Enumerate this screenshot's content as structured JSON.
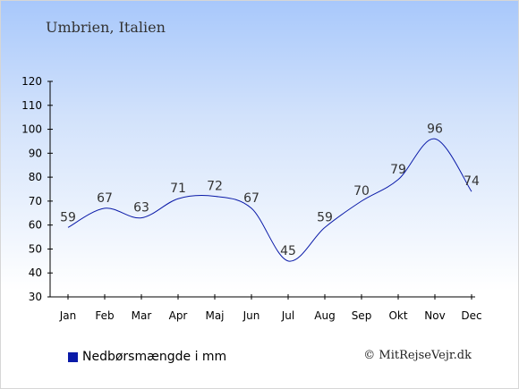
{
  "header": {
    "subtitle": "Umbrien, Italien"
  },
  "legend": {
    "label": "Nedbørsmængde i mm",
    "color": "#0a1aa8"
  },
  "credit": "© MitRejseVejr.dk",
  "chart_data": {
    "type": "line",
    "categories": [
      "Jan",
      "Feb",
      "Mar",
      "Apr",
      "Maj",
      "Jun",
      "Jul",
      "Aug",
      "Sep",
      "Okt",
      "Nov",
      "Dec"
    ],
    "series": [
      {
        "name": "Nedbørsmængde i mm",
        "values": [
          59,
          67,
          63,
          71,
          72,
          67,
          45,
          59,
          70,
          79,
          96,
          74
        ],
        "color": "#0a1aa8"
      }
    ],
    "yticks": [
      30,
      40,
      50,
      60,
      70,
      80,
      90,
      100,
      110,
      120
    ],
    "ylim": [
      30,
      120
    ],
    "title": "",
    "xlabel": "",
    "ylabel": "",
    "grid": false,
    "legend_position": "bottom-left"
  }
}
